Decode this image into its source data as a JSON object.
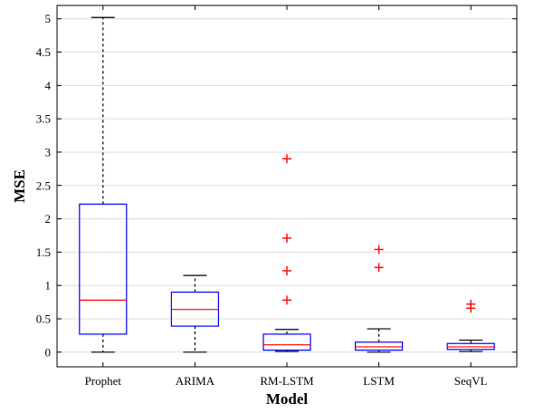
{
  "chart_data": {
    "type": "box",
    "title": "",
    "xlabel": "Model",
    "ylabel": "MSE",
    "ylim": [
      -0.22,
      5.2
    ],
    "yticks": [
      0,
      0.5,
      1,
      1.5,
      2,
      2.5,
      3,
      3.5,
      4,
      4.5,
      5
    ],
    "ytick_labels": [
      "0",
      "0.5",
      "1",
      "1.5",
      "2",
      "2.5",
      "3",
      "3.5",
      "4",
      "4.5",
      "5"
    ],
    "grid": "horizontal",
    "colors": {
      "box": "#0000ff",
      "median": "#ff0000",
      "whisker": "#000000",
      "outlier": "#ff0000",
      "grid": "#dcdcdc"
    },
    "categories": [
      "Prophet",
      "ARIMA",
      "RM-LSTM",
      "LSTM",
      "SeqVL"
    ],
    "boxes": [
      {
        "label": "Prophet",
        "whisker_low": 0.0,
        "q1": 0.27,
        "median": 0.78,
        "q3": 2.22,
        "whisker_high": 5.02,
        "outliers": []
      },
      {
        "label": "ARIMA",
        "whisker_low": 0.0,
        "q1": 0.39,
        "median": 0.64,
        "q3": 0.9,
        "whisker_high": 1.15,
        "outliers": []
      },
      {
        "label": "RM-LSTM",
        "whisker_low": 0.01,
        "q1": 0.03,
        "median": 0.11,
        "q3": 0.27,
        "whisker_high": 0.34,
        "outliers": [
          0.78,
          1.22,
          1.71,
          2.9
        ]
      },
      {
        "label": "LSTM",
        "whisker_low": 0.0,
        "q1": 0.03,
        "median": 0.08,
        "q3": 0.15,
        "whisker_high": 0.35,
        "outliers": [
          1.27,
          1.54
        ]
      },
      {
        "label": "SeqVL",
        "whisker_low": 0.01,
        "q1": 0.04,
        "median": 0.08,
        "q3": 0.13,
        "whisker_high": 0.18,
        "outliers": [
          0.66,
          0.72
        ]
      }
    ]
  }
}
